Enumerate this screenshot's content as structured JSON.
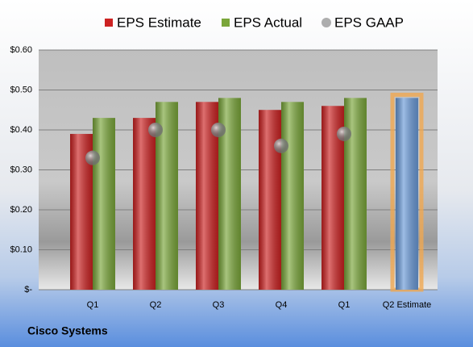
{
  "chart_data": {
    "type": "bar",
    "title": "Cisco Systems",
    "categories": [
      "Q1",
      "Q2",
      "Q3",
      "Q4",
      "Q1",
      "Q2 Estimate"
    ],
    "series": [
      {
        "name": "EPS Estimate",
        "color": "#cc2222",
        "highlight_color": "#6a9ad8",
        "values": [
          0.39,
          0.43,
          0.47,
          0.45,
          0.46,
          0.48
        ]
      },
      {
        "name": "EPS Actual",
        "color": "#7aa63a",
        "values": [
          0.43,
          0.47,
          0.48,
          0.47,
          0.48,
          null
        ]
      },
      {
        "name": "EPS GAAP",
        "color": "#8c8c8c",
        "marker": "circle",
        "values": [
          0.33,
          0.4,
          0.4,
          0.36,
          0.39,
          null
        ]
      }
    ],
    "ylim": [
      0,
      0.6
    ],
    "yticks": [
      {
        "value": 0,
        "label": "$-"
      },
      {
        "value": 0.1,
        "label": "$0.10"
      },
      {
        "value": 0.2,
        "label": "$0.20"
      },
      {
        "value": 0.3,
        "label": "$0.30"
      },
      {
        "value": 0.4,
        "label": "$0.40"
      },
      {
        "value": 0.5,
        "label": "$0.50"
      },
      {
        "value": 0.6,
        "label": "$0.60"
      }
    ],
    "grid": true,
    "legend": "top"
  }
}
